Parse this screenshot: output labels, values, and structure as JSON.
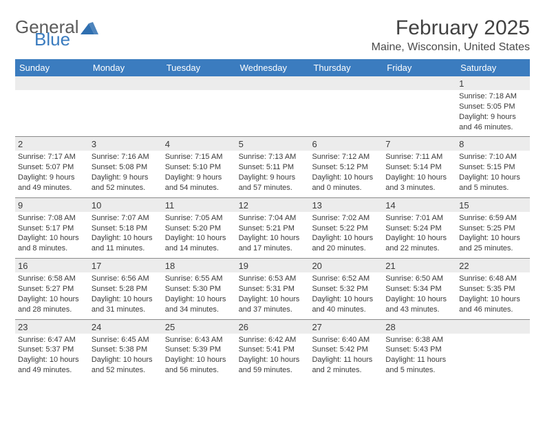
{
  "logo": {
    "text1": "General",
    "text2": "Blue",
    "color_general": "#5b5b5b",
    "color_blue": "#3b7cbf"
  },
  "title": "February 2025",
  "location": "Maine, Wisconsin, United States",
  "header_bg": "#3b7cbf",
  "header_fg": "#ffffff",
  "dayheader_bg": "#ececec",
  "days": [
    "Sunday",
    "Monday",
    "Tuesday",
    "Wednesday",
    "Thursday",
    "Friday",
    "Saturday"
  ],
  "weeks": [
    [
      null,
      null,
      null,
      null,
      null,
      null,
      {
        "n": "1",
        "sr": "Sunrise: 7:18 AM",
        "ss": "Sunset: 5:05 PM",
        "dl1": "Daylight: 9 hours",
        "dl2": "and 46 minutes."
      }
    ],
    [
      {
        "n": "2",
        "sr": "Sunrise: 7:17 AM",
        "ss": "Sunset: 5:07 PM",
        "dl1": "Daylight: 9 hours",
        "dl2": "and 49 minutes."
      },
      {
        "n": "3",
        "sr": "Sunrise: 7:16 AM",
        "ss": "Sunset: 5:08 PM",
        "dl1": "Daylight: 9 hours",
        "dl2": "and 52 minutes."
      },
      {
        "n": "4",
        "sr": "Sunrise: 7:15 AM",
        "ss": "Sunset: 5:10 PM",
        "dl1": "Daylight: 9 hours",
        "dl2": "and 54 minutes."
      },
      {
        "n": "5",
        "sr": "Sunrise: 7:13 AM",
        "ss": "Sunset: 5:11 PM",
        "dl1": "Daylight: 9 hours",
        "dl2": "and 57 minutes."
      },
      {
        "n": "6",
        "sr": "Sunrise: 7:12 AM",
        "ss": "Sunset: 5:12 PM",
        "dl1": "Daylight: 10 hours",
        "dl2": "and 0 minutes."
      },
      {
        "n": "7",
        "sr": "Sunrise: 7:11 AM",
        "ss": "Sunset: 5:14 PM",
        "dl1": "Daylight: 10 hours",
        "dl2": "and 3 minutes."
      },
      {
        "n": "8",
        "sr": "Sunrise: 7:10 AM",
        "ss": "Sunset: 5:15 PM",
        "dl1": "Daylight: 10 hours",
        "dl2": "and 5 minutes."
      }
    ],
    [
      {
        "n": "9",
        "sr": "Sunrise: 7:08 AM",
        "ss": "Sunset: 5:17 PM",
        "dl1": "Daylight: 10 hours",
        "dl2": "and 8 minutes."
      },
      {
        "n": "10",
        "sr": "Sunrise: 7:07 AM",
        "ss": "Sunset: 5:18 PM",
        "dl1": "Daylight: 10 hours",
        "dl2": "and 11 minutes."
      },
      {
        "n": "11",
        "sr": "Sunrise: 7:05 AM",
        "ss": "Sunset: 5:20 PM",
        "dl1": "Daylight: 10 hours",
        "dl2": "and 14 minutes."
      },
      {
        "n": "12",
        "sr": "Sunrise: 7:04 AM",
        "ss": "Sunset: 5:21 PM",
        "dl1": "Daylight: 10 hours",
        "dl2": "and 17 minutes."
      },
      {
        "n": "13",
        "sr": "Sunrise: 7:02 AM",
        "ss": "Sunset: 5:22 PM",
        "dl1": "Daylight: 10 hours",
        "dl2": "and 20 minutes."
      },
      {
        "n": "14",
        "sr": "Sunrise: 7:01 AM",
        "ss": "Sunset: 5:24 PM",
        "dl1": "Daylight: 10 hours",
        "dl2": "and 22 minutes."
      },
      {
        "n": "15",
        "sr": "Sunrise: 6:59 AM",
        "ss": "Sunset: 5:25 PM",
        "dl1": "Daylight: 10 hours",
        "dl2": "and 25 minutes."
      }
    ],
    [
      {
        "n": "16",
        "sr": "Sunrise: 6:58 AM",
        "ss": "Sunset: 5:27 PM",
        "dl1": "Daylight: 10 hours",
        "dl2": "and 28 minutes."
      },
      {
        "n": "17",
        "sr": "Sunrise: 6:56 AM",
        "ss": "Sunset: 5:28 PM",
        "dl1": "Daylight: 10 hours",
        "dl2": "and 31 minutes."
      },
      {
        "n": "18",
        "sr": "Sunrise: 6:55 AM",
        "ss": "Sunset: 5:30 PM",
        "dl1": "Daylight: 10 hours",
        "dl2": "and 34 minutes."
      },
      {
        "n": "19",
        "sr": "Sunrise: 6:53 AM",
        "ss": "Sunset: 5:31 PM",
        "dl1": "Daylight: 10 hours",
        "dl2": "and 37 minutes."
      },
      {
        "n": "20",
        "sr": "Sunrise: 6:52 AM",
        "ss": "Sunset: 5:32 PM",
        "dl1": "Daylight: 10 hours",
        "dl2": "and 40 minutes."
      },
      {
        "n": "21",
        "sr": "Sunrise: 6:50 AM",
        "ss": "Sunset: 5:34 PM",
        "dl1": "Daylight: 10 hours",
        "dl2": "and 43 minutes."
      },
      {
        "n": "22",
        "sr": "Sunrise: 6:48 AM",
        "ss": "Sunset: 5:35 PM",
        "dl1": "Daylight: 10 hours",
        "dl2": "and 46 minutes."
      }
    ],
    [
      {
        "n": "23",
        "sr": "Sunrise: 6:47 AM",
        "ss": "Sunset: 5:37 PM",
        "dl1": "Daylight: 10 hours",
        "dl2": "and 49 minutes."
      },
      {
        "n": "24",
        "sr": "Sunrise: 6:45 AM",
        "ss": "Sunset: 5:38 PM",
        "dl1": "Daylight: 10 hours",
        "dl2": "and 52 minutes."
      },
      {
        "n": "25",
        "sr": "Sunrise: 6:43 AM",
        "ss": "Sunset: 5:39 PM",
        "dl1": "Daylight: 10 hours",
        "dl2": "and 56 minutes."
      },
      {
        "n": "26",
        "sr": "Sunrise: 6:42 AM",
        "ss": "Sunset: 5:41 PM",
        "dl1": "Daylight: 10 hours",
        "dl2": "and 59 minutes."
      },
      {
        "n": "27",
        "sr": "Sunrise: 6:40 AM",
        "ss": "Sunset: 5:42 PM",
        "dl1": "Daylight: 11 hours",
        "dl2": "and 2 minutes."
      },
      {
        "n": "28",
        "sr": "Sunrise: 6:38 AM",
        "ss": "Sunset: 5:43 PM",
        "dl1": "Daylight: 11 hours",
        "dl2": "and 5 minutes."
      },
      null
    ]
  ]
}
